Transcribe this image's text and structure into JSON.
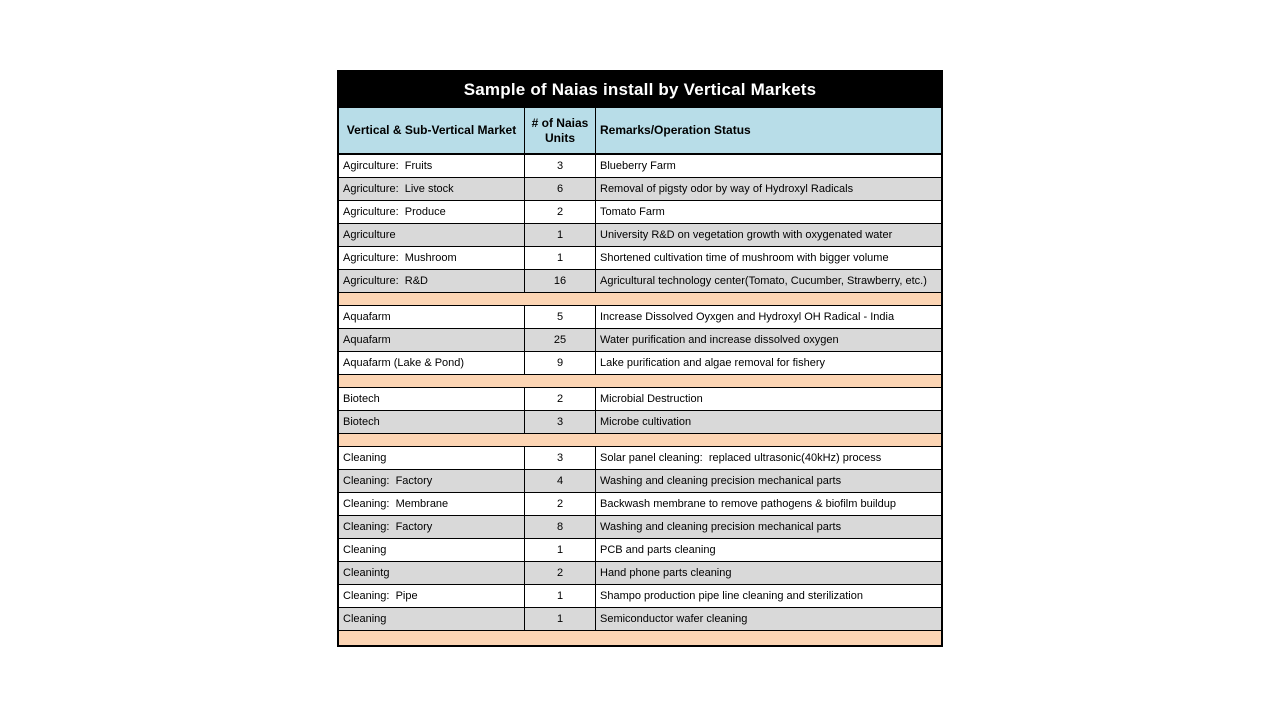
{
  "page": {
    "background": "#ffffff"
  },
  "table": {
    "title": "Sample of Naias install by Vertical Markets",
    "columns": [
      "Vertical & Sub-Vertical Market",
      "# of Naias Units",
      "Remarks/Operation Status"
    ],
    "colors": {
      "title_bg": "#000000",
      "title_text": "#ffffff",
      "header_bg": "#b8dde8",
      "row_alt_bg": "#d9d9d9",
      "separator_bg": "#fcd5b4",
      "border": "#000000"
    },
    "rows": [
      {
        "type": "data",
        "market": "Agirculture:  Fruits",
        "units": "3",
        "remarks": "Blueberry Farm"
      },
      {
        "type": "data",
        "market": "Agriculture:  Live stock",
        "units": "6",
        "remarks": "Removal of pigsty odor by way of Hydroxyl Radicals"
      },
      {
        "type": "data",
        "market": "Agriculture:  Produce",
        "units": "2",
        "remarks": "Tomato Farm"
      },
      {
        "type": "data",
        "market": "Agriculture",
        "units": "1",
        "remarks": "University R&D on vegetation growth with oxygenated water"
      },
      {
        "type": "data",
        "market": "Agriculture:  Mushroom",
        "units": "1",
        "remarks": "Shortened cultivation time of mushroom with bigger volume"
      },
      {
        "type": "data",
        "market": "Agriculture:  R&D",
        "units": "16",
        "remarks": "Agricultural technology center(Tomato, Cucumber, Strawberry, etc.)"
      },
      {
        "type": "separator"
      },
      {
        "type": "data",
        "market": "Aquafarm",
        "units": "5",
        "remarks": "Increase Dissolved Oyxgen and Hydroxyl OH Radical - India"
      },
      {
        "type": "data",
        "market": "Aquafarm",
        "units": "25",
        "remarks": "Water purification and increase dissolved oxygen"
      },
      {
        "type": "data",
        "market": "Aquafarm (Lake & Pond)",
        "units": "9",
        "remarks": "Lake purification and algae removal for fishery"
      },
      {
        "type": "separator"
      },
      {
        "type": "data",
        "market": "Biotech",
        "units": "2",
        "remarks": "Microbial Destruction"
      },
      {
        "type": "data",
        "market": "Biotech",
        "units": "3",
        "remarks": "Microbe cultivation"
      },
      {
        "type": "separator"
      },
      {
        "type": "data",
        "market": "Cleaning",
        "units": "3",
        "remarks": "Solar panel cleaning:  replaced ultrasonic(40kHz) process"
      },
      {
        "type": "data",
        "market": "Cleaning:  Factory",
        "units": "4",
        "remarks": "Washing and cleaning precision mechanical parts"
      },
      {
        "type": "data",
        "market": "Cleaning:  Membrane",
        "units": "2",
        "remarks": "Backwash membrane to remove pathogens & biofilm buildup"
      },
      {
        "type": "data",
        "market": "Cleaning:  Factory",
        "units": "8",
        "remarks": "Washing and cleaning precision mechanical parts"
      },
      {
        "type": "data",
        "market": "Cleaning",
        "units": "1",
        "remarks": "PCB and parts cleaning"
      },
      {
        "type": "data",
        "market": "Cleanintg",
        "units": "2",
        "remarks": "Hand phone parts cleaning"
      },
      {
        "type": "data",
        "market": "Cleaning:  Pipe",
        "units": "1",
        "remarks": "Shampo production pipe line cleaning and sterilization"
      },
      {
        "type": "data",
        "market": "Cleaning",
        "units": "1",
        "remarks": "Semiconductor wafer cleaning"
      },
      {
        "type": "separator"
      }
    ]
  }
}
